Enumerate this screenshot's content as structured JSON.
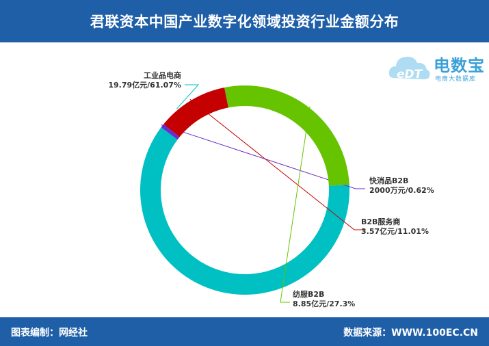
{
  "header": {
    "title": "君联资本中国产业数字化领域投资行业金额分布"
  },
  "logo": {
    "name": "电数宝",
    "subtitle": "电商大数据库",
    "mark": "eDT"
  },
  "footer": {
    "editor": "图表编制：网经社",
    "source": "数据来源：WWW.100EC.CN"
  },
  "chart_data": {
    "type": "pie",
    "variant": "donut",
    "slices": [
      {
        "name": "工业品电商",
        "value": 61.07,
        "amount": "19.79亿元",
        "label": "19.79亿元/61.07%",
        "color": "#00c0c3"
      },
      {
        "name": "快消品B2B",
        "value": 0.62,
        "amount": "2000万元",
        "label": "2000万元/0.62%",
        "color": "#6a2ccc"
      },
      {
        "name": "B2B服务商",
        "value": 11.01,
        "amount": "3.57亿元",
        "label": "3.57亿元/11.01%",
        "color": "#c40000"
      },
      {
        "name": "纺服B2B",
        "value": 27.3,
        "amount": "8.85亿元",
        "label": "8.85亿元/27.3%",
        "color": "#66c300"
      }
    ]
  }
}
